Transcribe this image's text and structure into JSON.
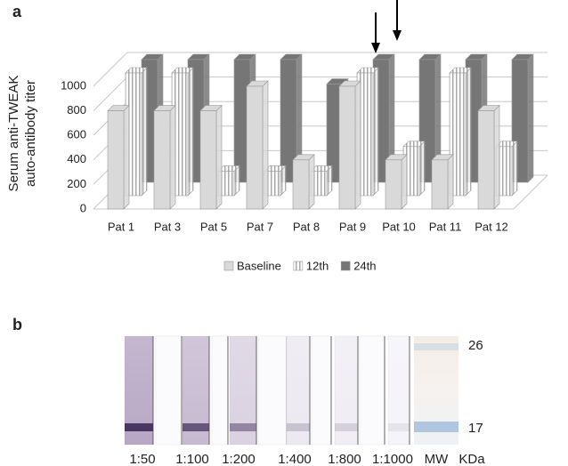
{
  "chart_data": {
    "type": "bar3d",
    "y_label": [
      "Serum anti-TWEAK",
      "auto-antibody titer"
    ],
    "categories": [
      "Pat 1",
      "Pat 3",
      "Pat 5",
      "Pat 7",
      "Pat 8",
      "Pat 9",
      "Pat 10",
      "Pat 11",
      "Pat 12"
    ],
    "series": [
      {
        "name": "Baseline",
        "color": "#d9d9d9",
        "values": [
          800,
          800,
          800,
          1000,
          400,
          1000,
          400,
          400,
          800
        ]
      },
      {
        "name": "12th",
        "color": "#ffffff",
        "values": [
          1000,
          1000,
          200,
          200,
          200,
          1000,
          400,
          1000,
          400
        ]
      },
      {
        "name": "24th",
        "color": "#767676",
        "values": [
          1000,
          1000,
          1000,
          1000,
          800,
          1000,
          1000,
          1000,
          1000
        ]
      }
    ],
    "ylim": [
      0,
      1000
    ],
    "yticks": [
      0,
      200,
      400,
      600,
      800,
      1000
    ],
    "grid": true
  },
  "panel_labels": [
    "a",
    "b"
  ],
  "blot": {
    "lanes": [
      "1:50",
      "1:100",
      "1:200",
      "1:400",
      "1:800",
      "1:1000",
      "MW"
    ],
    "mw_markers": [
      "26",
      "17"
    ],
    "unit": "KDa"
  }
}
